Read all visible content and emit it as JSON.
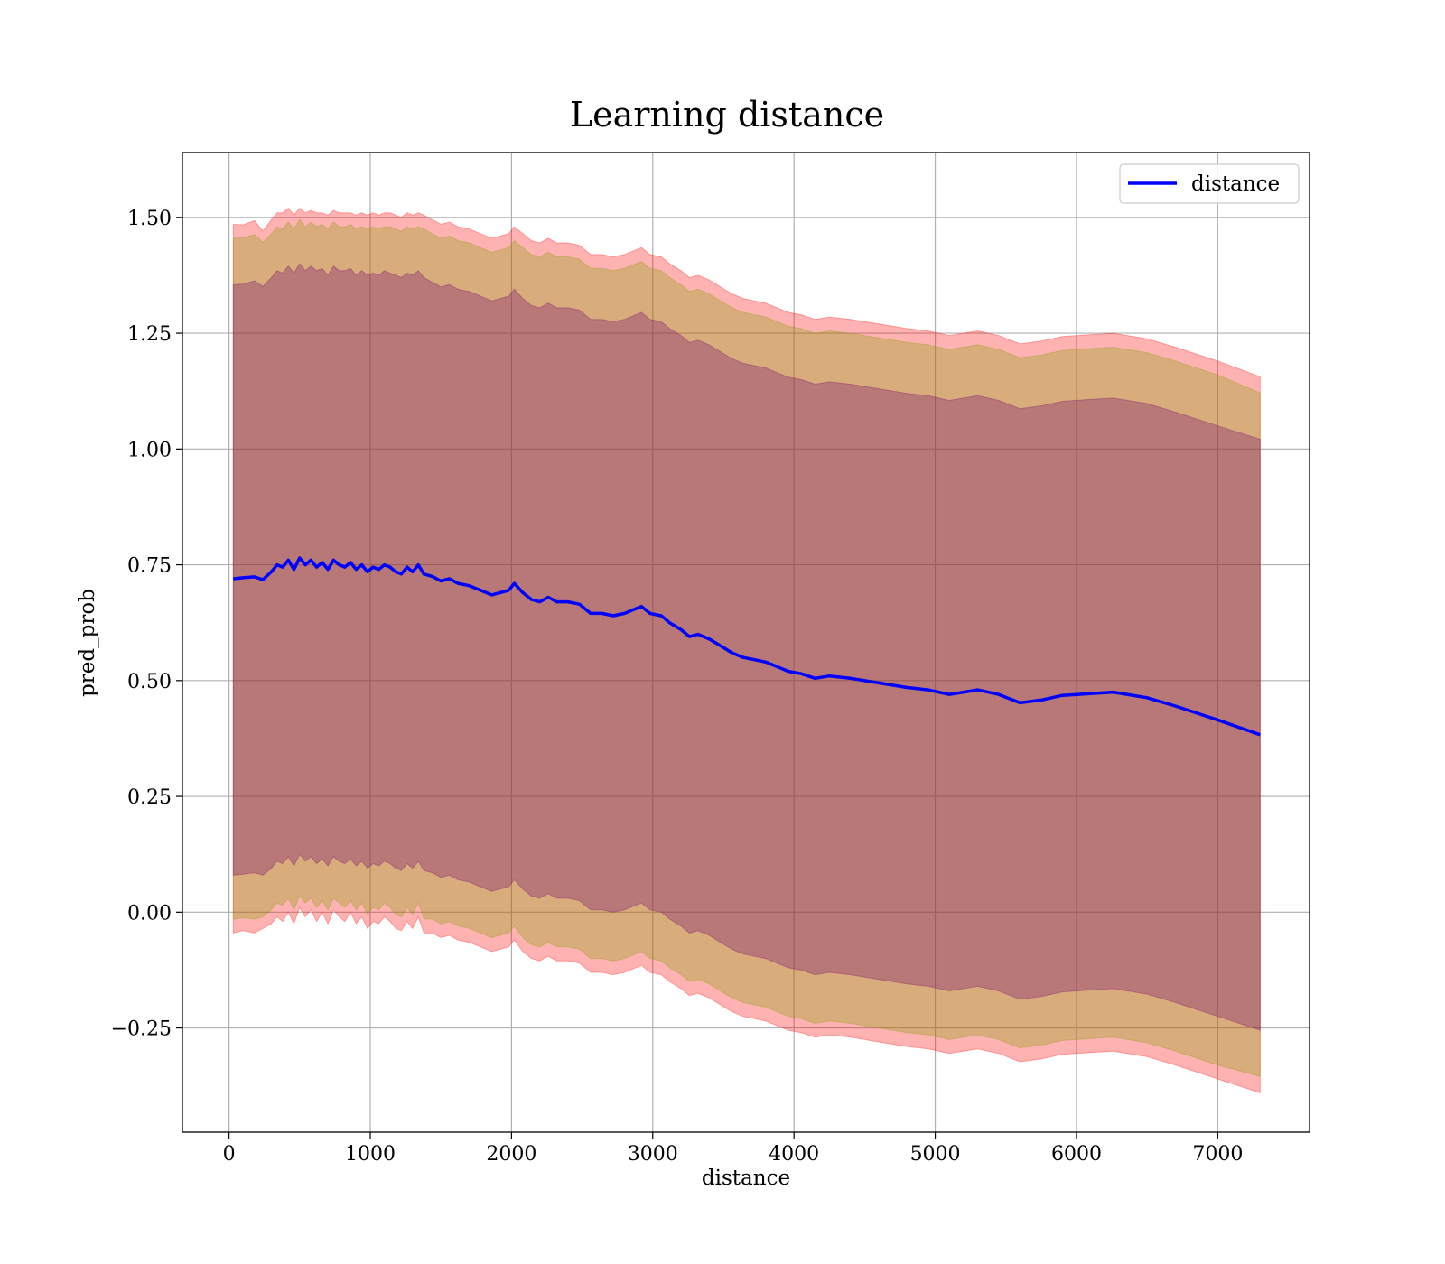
{
  "chart_data": {
    "type": "line",
    "title": "Learning distance",
    "xlabel": "distance",
    "ylabel": "pred_prob",
    "xlim": [
      -330,
      7650
    ],
    "ylim": [
      -0.475,
      1.64
    ],
    "x_ticks": [
      0,
      1000,
      2000,
      3000,
      4000,
      5000,
      6000,
      7000
    ],
    "x_tick_labels": [
      "0",
      "1000",
      "2000",
      "3000",
      "4000",
      "5000",
      "6000",
      "7000"
    ],
    "y_ticks": [
      -0.25,
      0.0,
      0.25,
      0.5,
      0.75,
      1.0,
      1.25,
      1.5
    ],
    "y_tick_labels": [
      "−0.25",
      "0.00",
      "0.25",
      "0.50",
      "0.75",
      "1.00",
      "1.25",
      "1.50"
    ],
    "grid": true,
    "legend_position": "top-right",
    "series": [
      {
        "name": "distance",
        "color": "#0000ff",
        "x": [
          30,
          100,
          180,
          240,
          300,
          340,
          380,
          420,
          460,
          500,
          540,
          580,
          620,
          660,
          700,
          740,
          780,
          820,
          860,
          900,
          940,
          980,
          1020,
          1060,
          1100,
          1140,
          1180,
          1220,
          1260,
          1300,
          1340,
          1380,
          1440,
          1500,
          1560,
          1620,
          1700,
          1780,
          1860,
          1920,
          1980,
          2020,
          2080,
          2140,
          2200,
          2260,
          2320,
          2400,
          2480,
          2560,
          2640,
          2720,
          2800,
          2880,
          2920,
          2980,
          3060,
          3120,
          3200,
          3260,
          3320,
          3400,
          3480,
          3560,
          3640,
          3720,
          3800,
          3880,
          3960,
          4050,
          4150,
          4250,
          4400,
          4600,
          4800,
          4950,
          5100,
          5300,
          5450,
          5600,
          5750,
          5900,
          6100,
          6260,
          6500,
          6700,
          7000,
          7300
        ],
        "y": [
          0.72,
          0.722,
          0.724,
          0.718,
          0.735,
          0.75,
          0.745,
          0.76,
          0.74,
          0.765,
          0.75,
          0.76,
          0.745,
          0.755,
          0.74,
          0.76,
          0.75,
          0.745,
          0.755,
          0.74,
          0.75,
          0.735,
          0.745,
          0.74,
          0.75,
          0.745,
          0.735,
          0.73,
          0.745,
          0.735,
          0.75,
          0.73,
          0.725,
          0.715,
          0.72,
          0.71,
          0.705,
          0.695,
          0.685,
          0.69,
          0.695,
          0.71,
          0.69,
          0.675,
          0.67,
          0.68,
          0.67,
          0.67,
          0.665,
          0.645,
          0.645,
          0.64,
          0.645,
          0.655,
          0.66,
          0.645,
          0.64,
          0.625,
          0.61,
          0.595,
          0.6,
          0.59,
          0.575,
          0.56,
          0.55,
          0.545,
          0.54,
          0.53,
          0.52,
          0.515,
          0.505,
          0.51,
          0.505,
          0.495,
          0.485,
          0.48,
          0.47,
          0.48,
          0.47,
          0.452,
          0.458,
          0.468,
          0.472,
          0.475,
          0.463,
          0.445,
          0.415,
          0.383
        ]
      }
    ],
    "bands": [
      {
        "color": "#ff0000",
        "opacity": 0.3,
        "lower": [
          -0.045,
          -0.04,
          -0.045,
          -0.035,
          -0.025,
          -0.01,
          -0.02,
          0.0,
          -0.025,
          0.01,
          -0.01,
          0.005,
          -0.02,
          0.0,
          -0.025,
          0.005,
          -0.01,
          -0.02,
          0.0,
          -0.025,
          -0.01,
          -0.035,
          -0.02,
          -0.025,
          -0.01,
          -0.02,
          -0.035,
          -0.04,
          -0.02,
          -0.035,
          -0.01,
          -0.045,
          -0.045,
          -0.055,
          -0.05,
          -0.06,
          -0.065,
          -0.075,
          -0.085,
          -0.08,
          -0.075,
          -0.06,
          -0.085,
          -0.1,
          -0.105,
          -0.095,
          -0.105,
          -0.105,
          -0.11,
          -0.13,
          -0.13,
          -0.135,
          -0.13,
          -0.12,
          -0.115,
          -0.13,
          -0.135,
          -0.15,
          -0.165,
          -0.18,
          -0.175,
          -0.185,
          -0.2,
          -0.215,
          -0.225,
          -0.23,
          -0.235,
          -0.245,
          -0.255,
          -0.26,
          -0.27,
          -0.265,
          -0.27,
          -0.28,
          -0.29,
          -0.295,
          -0.305,
          -0.295,
          -0.305,
          -0.323,
          -0.317,
          -0.307,
          -0.303,
          -0.3,
          -0.312,
          -0.33,
          -0.36,
          -0.39
        ],
        "upper": [
          1.485,
          1.484,
          1.493,
          1.471,
          1.495,
          1.51,
          1.51,
          1.52,
          1.505,
          1.52,
          1.51,
          1.515,
          1.51,
          1.51,
          1.505,
          1.515,
          1.51,
          1.51,
          1.51,
          1.505,
          1.51,
          1.505,
          1.51,
          1.505,
          1.51,
          1.51,
          1.505,
          1.5,
          1.51,
          1.505,
          1.51,
          1.505,
          1.495,
          1.485,
          1.49,
          1.48,
          1.475,
          1.465,
          1.455,
          1.46,
          1.465,
          1.48,
          1.465,
          1.45,
          1.445,
          1.455,
          1.445,
          1.445,
          1.44,
          1.42,
          1.42,
          1.415,
          1.42,
          1.43,
          1.435,
          1.42,
          1.415,
          1.4,
          1.385,
          1.37,
          1.375,
          1.365,
          1.35,
          1.335,
          1.325,
          1.32,
          1.315,
          1.305,
          1.295,
          1.29,
          1.28,
          1.285,
          1.28,
          1.27,
          1.26,
          1.255,
          1.245,
          1.255,
          1.245,
          1.227,
          1.233,
          1.243,
          1.247,
          1.25,
          1.238,
          1.22,
          1.19,
          1.156
        ]
      },
      {
        "color": "#80a000",
        "opacity": 0.3,
        "lower": [
          -0.015,
          -0.012,
          -0.015,
          -0.01,
          0.005,
          0.02,
          0.015,
          0.03,
          0.005,
          0.035,
          0.02,
          0.03,
          0.01,
          0.025,
          0.005,
          0.03,
          0.02,
          0.01,
          0.025,
          0.005,
          0.02,
          -0.005,
          0.01,
          0.005,
          0.02,
          0.01,
          -0.005,
          -0.01,
          0.01,
          -0.005,
          0.02,
          -0.015,
          -0.015,
          -0.025,
          -0.02,
          -0.03,
          -0.035,
          -0.045,
          -0.055,
          -0.05,
          -0.045,
          -0.03,
          -0.055,
          -0.07,
          -0.075,
          -0.065,
          -0.075,
          -0.075,
          -0.08,
          -0.1,
          -0.1,
          -0.105,
          -0.1,
          -0.09,
          -0.085,
          -0.1,
          -0.105,
          -0.12,
          -0.135,
          -0.15,
          -0.145,
          -0.155,
          -0.17,
          -0.185,
          -0.195,
          -0.2,
          -0.205,
          -0.215,
          -0.225,
          -0.23,
          -0.24,
          -0.235,
          -0.24,
          -0.25,
          -0.26,
          -0.265,
          -0.275,
          -0.265,
          -0.275,
          -0.293,
          -0.287,
          -0.277,
          -0.273,
          -0.27,
          -0.282,
          -0.3,
          -0.33,
          -0.355
        ],
        "upper": [
          1.455,
          1.456,
          1.463,
          1.446,
          1.465,
          1.48,
          1.475,
          1.49,
          1.475,
          1.495,
          1.48,
          1.49,
          1.48,
          1.485,
          1.475,
          1.49,
          1.48,
          1.48,
          1.485,
          1.475,
          1.48,
          1.475,
          1.48,
          1.475,
          1.48,
          1.48,
          1.475,
          1.47,
          1.48,
          1.475,
          1.48,
          1.475,
          1.465,
          1.455,
          1.46,
          1.45,
          1.445,
          1.435,
          1.425,
          1.43,
          1.435,
          1.45,
          1.435,
          1.42,
          1.415,
          1.425,
          1.415,
          1.415,
          1.41,
          1.39,
          1.39,
          1.385,
          1.39,
          1.4,
          1.405,
          1.39,
          1.385,
          1.37,
          1.355,
          1.34,
          1.345,
          1.335,
          1.32,
          1.305,
          1.295,
          1.29,
          1.285,
          1.275,
          1.265,
          1.26,
          1.25,
          1.255,
          1.25,
          1.24,
          1.23,
          1.225,
          1.215,
          1.225,
          1.215,
          1.197,
          1.203,
          1.213,
          1.217,
          1.22,
          1.208,
          1.19,
          1.16,
          1.121
        ]
      },
      {
        "color": "#700070",
        "opacity": 0.3,
        "lower": [
          0.08,
          0.082,
          0.085,
          0.08,
          0.095,
          0.11,
          0.105,
          0.12,
          0.1,
          0.125,
          0.11,
          0.12,
          0.105,
          0.115,
          0.1,
          0.12,
          0.11,
          0.105,
          0.115,
          0.1,
          0.11,
          0.095,
          0.105,
          0.1,
          0.11,
          0.105,
          0.095,
          0.09,
          0.105,
          0.095,
          0.11,
          0.09,
          0.085,
          0.075,
          0.08,
          0.07,
          0.065,
          0.055,
          0.045,
          0.05,
          0.055,
          0.07,
          0.05,
          0.035,
          0.03,
          0.04,
          0.03,
          0.03,
          0.025,
          0.005,
          0.005,
          0.0,
          0.005,
          0.015,
          0.02,
          0.005,
          0.0,
          -0.015,
          -0.03,
          -0.045,
          -0.04,
          -0.05,
          -0.065,
          -0.08,
          -0.09,
          -0.095,
          -0.1,
          -0.11,
          -0.12,
          -0.125,
          -0.135,
          -0.13,
          -0.135,
          -0.145,
          -0.155,
          -0.16,
          -0.17,
          -0.16,
          -0.17,
          -0.188,
          -0.182,
          -0.172,
          -0.168,
          -0.165,
          -0.177,
          -0.195,
          -0.225,
          -0.255
        ],
        "upper": [
          1.355,
          1.356,
          1.363,
          1.351,
          1.37,
          1.385,
          1.38,
          1.395,
          1.38,
          1.4,
          1.385,
          1.395,
          1.385,
          1.39,
          1.375,
          1.395,
          1.385,
          1.385,
          1.39,
          1.375,
          1.385,
          1.375,
          1.38,
          1.375,
          1.385,
          1.38,
          1.375,
          1.37,
          1.38,
          1.375,
          1.385,
          1.37,
          1.36,
          1.35,
          1.355,
          1.345,
          1.34,
          1.33,
          1.32,
          1.325,
          1.33,
          1.345,
          1.325,
          1.31,
          1.305,
          1.315,
          1.305,
          1.305,
          1.3,
          1.28,
          1.28,
          1.275,
          1.28,
          1.29,
          1.295,
          1.28,
          1.275,
          1.26,
          1.245,
          1.23,
          1.235,
          1.225,
          1.21,
          1.195,
          1.185,
          1.18,
          1.175,
          1.165,
          1.155,
          1.15,
          1.14,
          1.145,
          1.14,
          1.13,
          1.12,
          1.115,
          1.105,
          1.115,
          1.105,
          1.087,
          1.093,
          1.103,
          1.107,
          1.11,
          1.098,
          1.08,
          1.05,
          1.021
        ]
      }
    ]
  }
}
